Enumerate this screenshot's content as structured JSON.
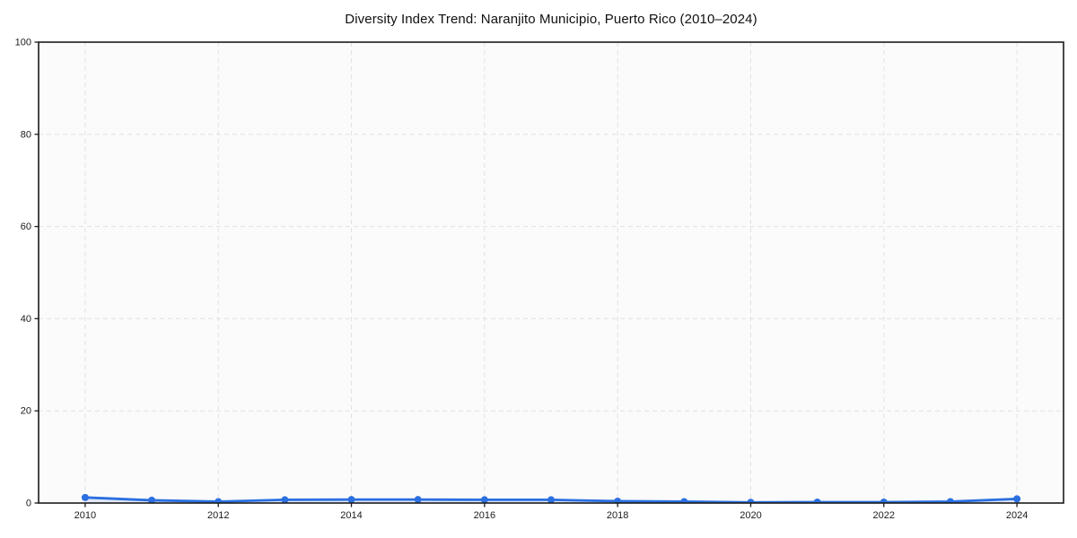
{
  "chart_data": {
    "type": "line",
    "title": "Diversity Index Trend: Naranjito Municipio, Puerto Rico (2010–2024)",
    "series_name": "Diversity Index",
    "x": [
      2010,
      2011,
      2012,
      2013,
      2014,
      2015,
      2016,
      2017,
      2018,
      2019,
      2020,
      2021,
      2022,
      2023,
      2024
    ],
    "values": [
      1.2,
      0.6,
      0.3,
      0.7,
      0.75,
      0.75,
      0.7,
      0.7,
      0.4,
      0.3,
      0.15,
      0.2,
      0.2,
      0.3,
      0.9
    ],
    "xlabel": "",
    "ylabel": "",
    "xlim": [
      2009.3,
      2024.7
    ],
    "ylim": [
      0,
      100
    ],
    "x_ticks": [
      2010,
      2012,
      2014,
      2016,
      2018,
      2020,
      2022,
      2024
    ],
    "y_ticks": [
      0,
      20,
      40,
      60,
      80,
      100
    ],
    "grid": true,
    "grid_style": "dashed",
    "legend": false,
    "colors": {
      "line": "#2b6fe0",
      "marker": "#2b6fe0",
      "area_fill": "rgba(43,111,224,0.13)",
      "grid": "#e2e2e2",
      "spine": "#1b1b1b",
      "tick_label": "#1c1c1c",
      "plot_background": "#fbfbfb",
      "figure_background": "#ffffff"
    }
  }
}
